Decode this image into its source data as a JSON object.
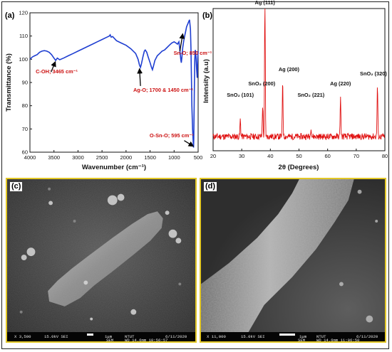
{
  "panel_a": {
    "label": "(a)",
    "ylabel": "Transmittance (%)",
    "xlabel": "Wavenumber (cm⁻¹)",
    "annotations": [
      {
        "name": "ftir-annotation-coh",
        "text": "C-OH; 3465 cm⁻¹"
      },
      {
        "name": "ftir-annotation-ago",
        "text": "Ag-O; 1700 & 1450 cm⁻¹"
      },
      {
        "name": "ftir-annotation-sno",
        "text": "Sn-O; 850 cm⁻¹"
      },
      {
        "name": "ftir-annotation-osno",
        "text": "O-Sn-O; 595 cm⁻¹"
      }
    ]
  },
  "panel_b": {
    "label": "(b)",
    "ylabel": "Intensity (a.u)",
    "xlabel": "2θ (Degrees)",
    "peak_labels": [
      {
        "name": "xrd-label-sno2-101",
        "text": "SnO₂ (101)"
      },
      {
        "name": "xrd-label-sno2-200",
        "text": "SnO₂ (200)"
      },
      {
        "name": "xrd-label-ag-111",
        "text": "Ag (111)"
      },
      {
        "name": "xrd-label-ag-200",
        "text": "Ag (200)"
      },
      {
        "name": "xrd-label-sno2-221",
        "text": "SnO₂ (221)"
      },
      {
        "name": "xrd-label-ag-220",
        "text": "Ag (220)"
      },
      {
        "name": "xrd-label-sno2-320",
        "text": "SnO₂ (320)"
      }
    ]
  },
  "panel_c": {
    "label": "(c)",
    "databar": {
      "mag": "X 3,500",
      "kv": "15.0kV SEI",
      "scale": "1μm",
      "inst": "NTUT",
      "date": "6/11/2020",
      "det": "SEM",
      "wd": "WD 14.6mm 10:56:57"
    }
  },
  "panel_d": {
    "label": "(d)",
    "databar": {
      "mag": "X 11,000",
      "kv": "15.0kV SEI",
      "scale": "1μm",
      "inst": "NTUT",
      "date": "6/11/2020",
      "det": "SEM",
      "wd": "WD 14.6mm 11:06:50"
    }
  },
  "colors": {
    "ftir_line": "#1f3fd1",
    "xrd_line": "#e01010",
    "annotation": "#cc1111",
    "sem_border": "#e2c726"
  },
  "chart_data": [
    {
      "type": "line",
      "panel": "(a)",
      "xlabel": "Wavenumber (cm⁻¹)",
      "ylabel": "Transmittance (%)",
      "xlim": [
        4000,
        500
      ],
      "ylim": [
        60,
        120
      ],
      "xticks": [
        4000,
        3500,
        3000,
        2500,
        2000,
        1500,
        1000,
        500
      ],
      "yticks": [
        60,
        70,
        80,
        90,
        100,
        110,
        120
      ],
      "x": [
        4000,
        3950,
        3900,
        3850,
        3800,
        3750,
        3700,
        3650,
        3600,
        3550,
        3500,
        3465,
        3430,
        3380,
        3300,
        3200,
        3100,
        3000,
        2900,
        2800,
        2700,
        2600,
        2500,
        2400,
        2350,
        2330,
        2310,
        2280,
        2200,
        2100,
        2000,
        1900,
        1800,
        1750,
        1720,
        1700,
        1680,
        1650,
        1620,
        1600,
        1570,
        1540,
        1500,
        1470,
        1450,
        1430,
        1400,
        1350,
        1300,
        1250,
        1200,
        1150,
        1100,
        1050,
        1000,
        960,
        930,
        900,
        880,
        860,
        850,
        840,
        820,
        800,
        780,
        760,
        740,
        720,
        700,
        680,
        660,
        650,
        640,
        630,
        615,
        600,
        595,
        590,
        580,
        570,
        560,
        550,
        540,
        530,
        520,
        510,
        500
      ],
      "series": [
        {
          "values": [
            100,
            101,
            101.5,
            102,
            103,
            103.5,
            103.7,
            103.5,
            103,
            102,
            100.5,
            99.5,
            100.5,
            99.8,
            100.5,
            101.5,
            102.5,
            103.5,
            104.5,
            105.5,
            106.5,
            107.5,
            108.5,
            109.5,
            110,
            110.5,
            109.5,
            109.8,
            108,
            107,
            106,
            104.5,
            102.5,
            100,
            97.5,
            96.5,
            98,
            101,
            103.5,
            104,
            103,
            101,
            98.5,
            96.5,
            95.5,
            97,
            99.5,
            101.5,
            102.5,
            103.5,
            104,
            105,
            106,
            107,
            107.5,
            107,
            106.5,
            107.5,
            104,
            99.8,
            98.5,
            100.5,
            105,
            108,
            110,
            112,
            114,
            115,
            116,
            117,
            113,
            105,
            92,
            80,
            70,
            63,
            62,
            66,
            85,
            100,
            104,
            103,
            99,
            95,
            92,
            100,
            103.5
          ]
        }
      ],
      "annotations": [
        "C-OH; 3465 cm⁻¹",
        "Ag-O; 1700 & 1450 cm⁻¹",
        "Sn-O; 850 cm⁻¹",
        "O-Sn-O; 595 cm⁻¹"
      ]
    },
    {
      "type": "line",
      "panel": "(b)",
      "xlabel": "2θ (Degrees)",
      "ylabel": "Intensity (a.u)",
      "xlim": [
        20,
        80
      ],
      "xticks": [
        20,
        30,
        40,
        50,
        60,
        70,
        80
      ],
      "ylim": [
        0,
        100
      ],
      "yticks": [],
      "baseline": 10,
      "noise": 2.2,
      "peaks": [
        {
          "x": 29.5,
          "height": 12,
          "label": "SnO₂ (101)"
        },
        {
          "x": 37.3,
          "height": 22,
          "label": "SnO₂ (200)"
        },
        {
          "x": 38.1,
          "height": 100,
          "label": "Ag (111)"
        },
        {
          "x": 44.3,
          "height": 40,
          "label": "Ag (200)"
        },
        {
          "x": 54.2,
          "height": 7,
          "label": "SnO₂ (221)"
        },
        {
          "x": 64.5,
          "height": 28,
          "label": "Ag (220)"
        },
        {
          "x": 77.4,
          "height": 36,
          "label": "SnO₂ (320)"
        }
      ]
    }
  ]
}
